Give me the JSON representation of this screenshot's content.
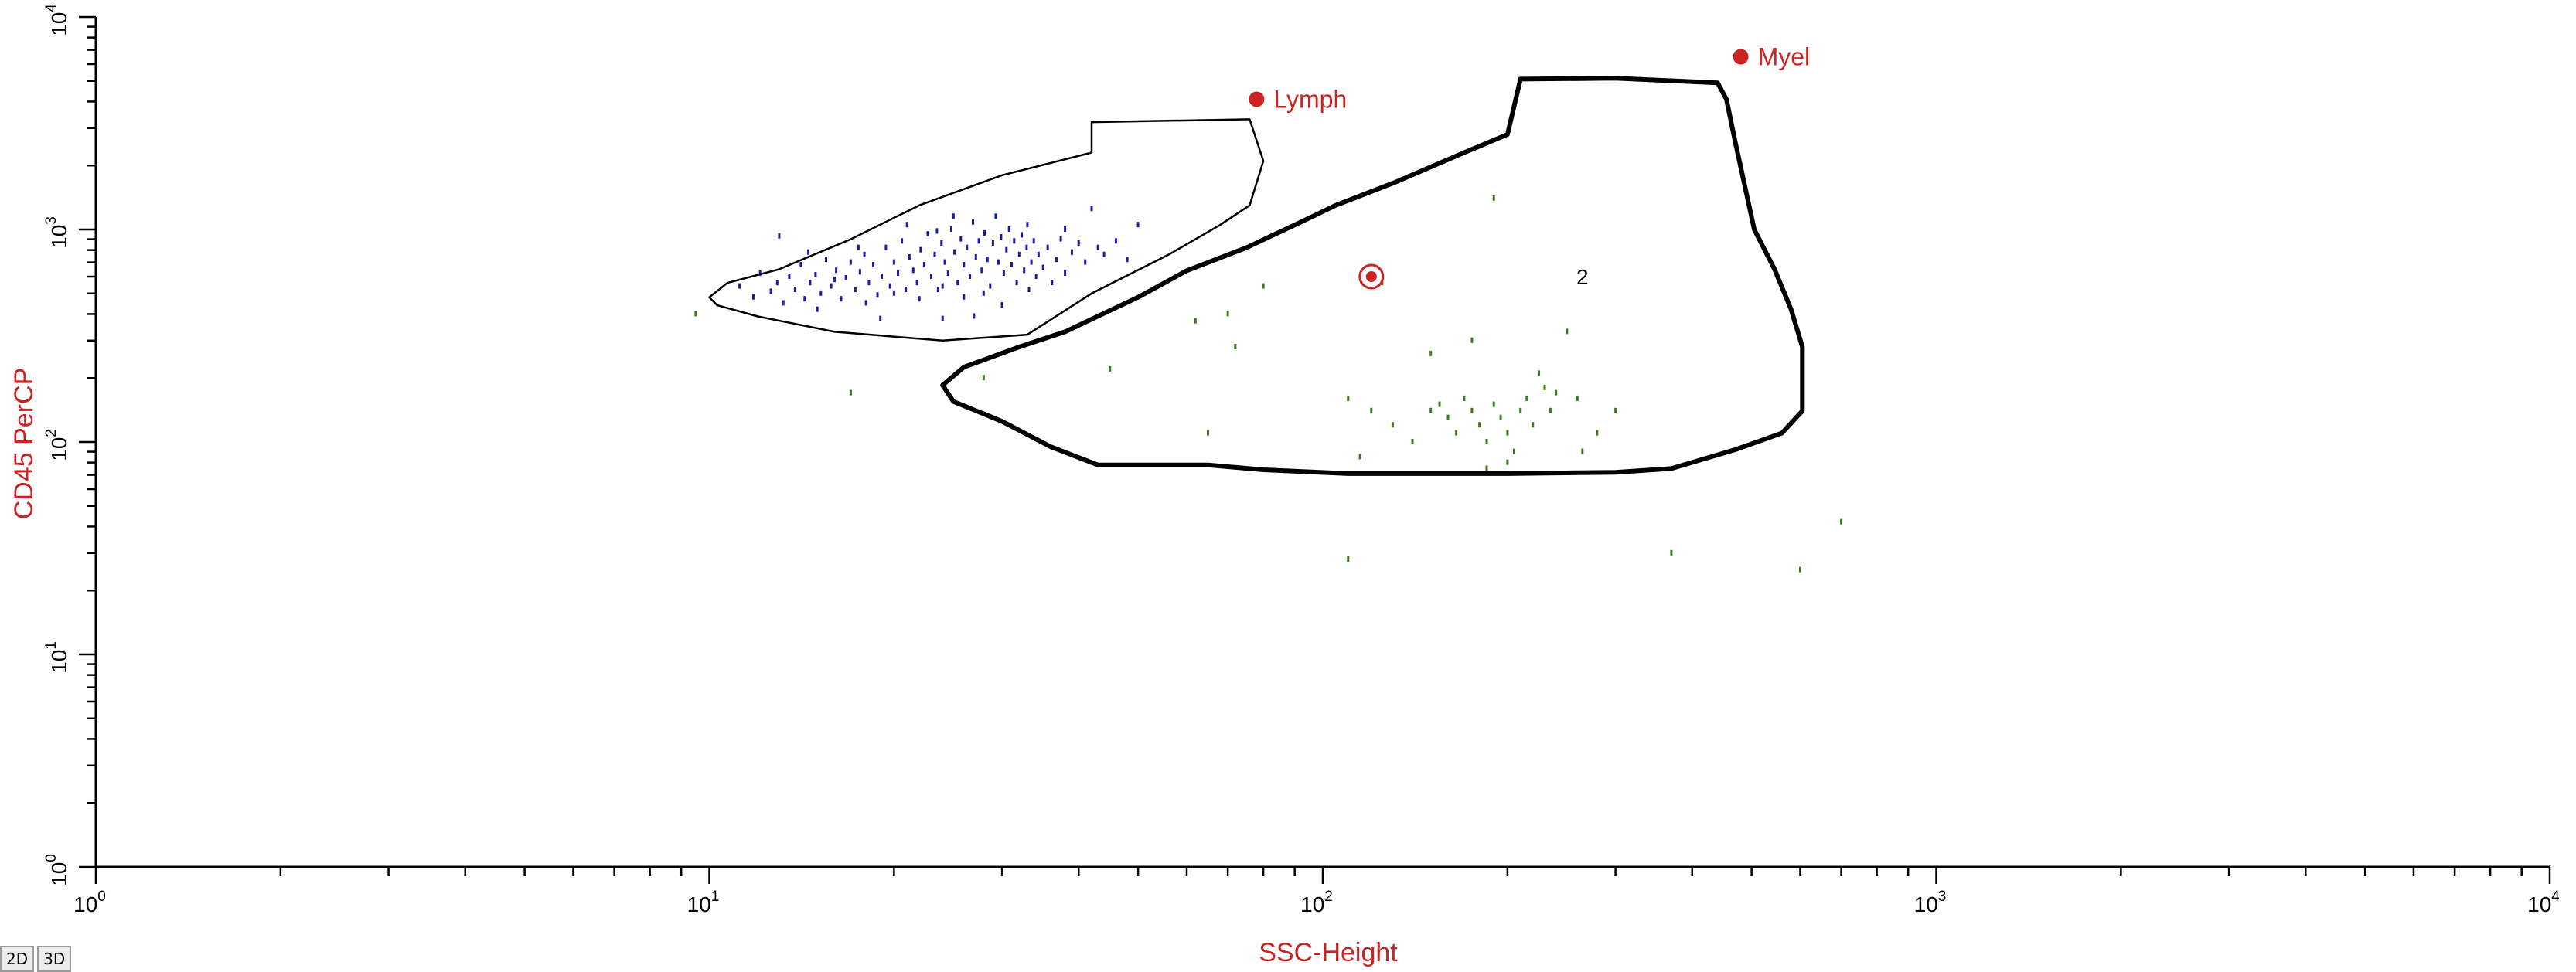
{
  "chart_data": {
    "type": "scatter",
    "title": "",
    "xlabel": "SSC-Height",
    "ylabel": "CD45 PerCP",
    "xscale": "log",
    "yscale": "log",
    "xlim": [
      1,
      10000
    ],
    "ylim": [
      1,
      10000
    ],
    "x_ticks": [
      {
        "base": "10",
        "exp": "0",
        "value": 1
      },
      {
        "base": "10",
        "exp": "1",
        "value": 10
      },
      {
        "base": "10",
        "exp": "2",
        "value": 100
      },
      {
        "base": "10",
        "exp": "3",
        "value": 1000
      },
      {
        "base": "10",
        "exp": "4",
        "value": 10000
      }
    ],
    "y_ticks": [
      {
        "base": "10",
        "exp": "0",
        "value": 1
      },
      {
        "base": "10",
        "exp": "1",
        "value": 10
      },
      {
        "base": "10",
        "exp": "2",
        "value": 100
      },
      {
        "base": "10",
        "exp": "3",
        "value": 1000
      },
      {
        "base": "10",
        "exp": "4",
        "value": 10000
      }
    ],
    "grid": false,
    "gates": [
      {
        "name": "Lymph",
        "color": "#cc2222",
        "label_marker": [
          78,
          4100
        ],
        "style": "thin",
        "polygon": [
          [
            42,
            3200
          ],
          [
            76,
            3300
          ],
          [
            80,
            2100
          ],
          [
            76,
            1300
          ],
          [
            68,
            1050
          ],
          [
            56,
            760
          ],
          [
            42,
            500
          ],
          [
            33,
            320
          ],
          [
            24,
            300
          ],
          [
            16,
            330
          ],
          [
            12,
            390
          ],
          [
            10.3,
            440
          ],
          [
            10,
            480
          ],
          [
            10.7,
            560
          ],
          [
            13,
            650
          ],
          [
            17,
            900
          ],
          [
            22,
            1300
          ],
          [
            30,
            1800
          ],
          [
            42,
            2300
          ],
          [
            42,
            3200
          ]
        ]
      },
      {
        "name": "Myel",
        "color": "#cc2222",
        "label_marker": [
          480,
          6500
        ],
        "center_marker": [
          120,
          600
        ],
        "center_label": "2",
        "center_label_at": [
          265,
          600
        ],
        "style": "thick",
        "polygon": [
          [
            210,
            5100
          ],
          [
            300,
            5150
          ],
          [
            440,
            4900
          ],
          [
            455,
            4100
          ],
          [
            470,
            2600
          ],
          [
            505,
            1000
          ],
          [
            545,
            650
          ],
          [
            580,
            420
          ],
          [
            605,
            280
          ],
          [
            605,
            140
          ],
          [
            560,
            110
          ],
          [
            470,
            92
          ],
          [
            370,
            75
          ],
          [
            300,
            72
          ],
          [
            200,
            71
          ],
          [
            150,
            71
          ],
          [
            110,
            71
          ],
          [
            80,
            74
          ],
          [
            65,
            78
          ],
          [
            43,
            78
          ],
          [
            36,
            95
          ],
          [
            30,
            125
          ],
          [
            25,
            155
          ],
          [
            24,
            185
          ],
          [
            26,
            225
          ],
          [
            32,
            280
          ],
          [
            38,
            330
          ],
          [
            50,
            480
          ],
          [
            60,
            640
          ],
          [
            75,
            820
          ],
          [
            90,
            1050
          ],
          [
            105,
            1300
          ],
          [
            130,
            1650
          ],
          [
            170,
            2300
          ],
          [
            200,
            2800
          ],
          [
            210,
            5100
          ]
        ]
      }
    ],
    "series": [
      {
        "name": "Lymph",
        "color": "#1a1aa6",
        "points": [
          [
            11.2,
            540
          ],
          [
            11.8,
            480
          ],
          [
            12.1,
            620
          ],
          [
            12.6,
            510
          ],
          [
            12.9,
            560
          ],
          [
            13.2,
            450
          ],
          [
            13.5,
            600
          ],
          [
            13.8,
            520
          ],
          [
            14.1,
            680
          ],
          [
            14.3,
            470
          ],
          [
            14.6,
            560
          ],
          [
            14.9,
            610
          ],
          [
            15.2,
            500
          ],
          [
            15.5,
            720
          ],
          [
            15.8,
            540
          ],
          [
            16.1,
            640
          ],
          [
            16.4,
            470
          ],
          [
            16.7,
            590
          ],
          [
            17.0,
            700
          ],
          [
            17.3,
            520
          ],
          [
            17.6,
            630
          ],
          [
            17.9,
            760
          ],
          [
            18.2,
            560
          ],
          [
            18.5,
            680
          ],
          [
            18.8,
            490
          ],
          [
            19.1,
            600
          ],
          [
            19.4,
            820
          ],
          [
            19.7,
            540
          ],
          [
            20.0,
            700
          ],
          [
            20.3,
            620
          ],
          [
            20.6,
            880
          ],
          [
            20.9,
            520
          ],
          [
            21.2,
            740
          ],
          [
            21.5,
            640
          ],
          [
            21.8,
            560
          ],
          [
            22.1,
            800
          ],
          [
            22.4,
            680
          ],
          [
            22.7,
            950
          ],
          [
            23.0,
            600
          ],
          [
            23.3,
            760
          ],
          [
            23.6,
            520
          ],
          [
            23.9,
            860
          ],
          [
            24.2,
            700
          ],
          [
            24.5,
            620
          ],
          [
            24.8,
            1000
          ],
          [
            25.1,
            780
          ],
          [
            25.4,
            560
          ],
          [
            25.7,
            900
          ],
          [
            26.0,
            680
          ],
          [
            26.3,
            820
          ],
          [
            26.6,
            600
          ],
          [
            26.9,
            1080
          ],
          [
            27.2,
            740
          ],
          [
            27.5,
            880
          ],
          [
            27.8,
            640
          ],
          [
            28.1,
            960
          ],
          [
            28.4,
            720
          ],
          [
            28.7,
            540
          ],
          [
            29.0,
            860
          ],
          [
            29.3,
            1150
          ],
          [
            29.6,
            700
          ],
          [
            29.9,
            920
          ],
          [
            30.2,
            620
          ],
          [
            30.5,
            800
          ],
          [
            30.8,
            1000
          ],
          [
            31.1,
            680
          ],
          [
            31.4,
            880
          ],
          [
            31.7,
            560
          ],
          [
            32.0,
            760
          ],
          [
            32.3,
            940
          ],
          [
            32.6,
            640
          ],
          [
            32.9,
            820
          ],
          [
            33.2,
            520
          ],
          [
            33.5,
            700
          ],
          [
            33.8,
            880
          ],
          [
            34.1,
            600
          ],
          [
            34.4,
            760
          ],
          [
            35.0,
            660
          ],
          [
            35.6,
            820
          ],
          [
            36.2,
            560
          ],
          [
            36.8,
            720
          ],
          [
            37.4,
            900
          ],
          [
            38.0,
            620
          ],
          [
            39.0,
            780
          ],
          [
            40.0,
            860
          ],
          [
            41.0,
            700
          ],
          [
            42.0,
            1250
          ],
          [
            43.0,
            820
          ],
          [
            44.0,
            760
          ],
          [
            46.0,
            880
          ],
          [
            48.0,
            720
          ],
          [
            50.0,
            1050
          ],
          [
            15.0,
            420
          ],
          [
            16.0,
            580
          ],
          [
            18.0,
            450
          ],
          [
            20.0,
            500
          ],
          [
            22.0,
            470
          ],
          [
            24.0,
            540
          ],
          [
            26.0,
            480
          ],
          [
            28.0,
            500
          ],
          [
            30.0,
            440
          ],
          [
            27.0,
            390
          ],
          [
            24.0,
            380
          ],
          [
            19.0,
            380
          ],
          [
            13.0,
            930
          ],
          [
            14.5,
            780
          ],
          [
            21.0,
            1050
          ],
          [
            25.0,
            1150
          ],
          [
            33.0,
            1050
          ],
          [
            38.0,
            1000
          ],
          [
            17.5,
            820
          ],
          [
            23.5,
            980
          ]
        ]
      },
      {
        "name": "Myel",
        "color": "#3a7a1a",
        "points": [
          [
            9.5,
            400
          ],
          [
            17,
            170
          ],
          [
            28,
            200
          ],
          [
            45,
            220
          ],
          [
            62,
            370
          ],
          [
            65,
            110
          ],
          [
            70,
            400
          ],
          [
            72,
            280
          ],
          [
            80,
            540
          ],
          [
            110,
            160
          ],
          [
            115,
            85
          ],
          [
            120,
            140
          ],
          [
            125,
            560
          ],
          [
            130,
            120
          ],
          [
            140,
            100
          ],
          [
            150,
            140
          ],
          [
            155,
            150
          ],
          [
            160,
            130
          ],
          [
            165,
            110
          ],
          [
            170,
            160
          ],
          [
            175,
            140
          ],
          [
            180,
            120
          ],
          [
            185,
            100
          ],
          [
            190,
            150
          ],
          [
            195,
            130
          ],
          [
            200,
            110
          ],
          [
            205,
            90
          ],
          [
            210,
            140
          ],
          [
            215,
            160
          ],
          [
            220,
            120
          ],
          [
            225,
            210
          ],
          [
            230,
            180
          ],
          [
            235,
            140
          ],
          [
            240,
            170
          ],
          [
            190,
            1400
          ],
          [
            250,
            330
          ],
          [
            260,
            160
          ],
          [
            265,
            90
          ],
          [
            280,
            110
          ],
          [
            300,
            140
          ],
          [
            110,
            28
          ],
          [
            370,
            30
          ],
          [
            600,
            25
          ],
          [
            700,
            42
          ],
          [
            200,
            80
          ],
          [
            185,
            75
          ],
          [
            150,
            260
          ],
          [
            175,
            300
          ]
        ]
      }
    ]
  },
  "view_buttons": [
    {
      "label": "2D"
    },
    {
      "label": "3D"
    }
  ]
}
